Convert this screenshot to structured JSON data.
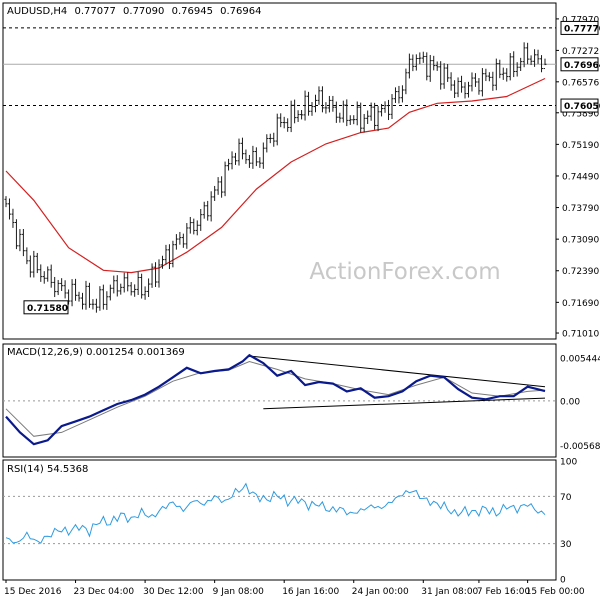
{
  "header": {
    "symbol": "AUDUSD,H4",
    "ohlc": [
      "0.77077",
      "0.77090",
      "0.76945",
      "0.76964"
    ]
  },
  "watermark": "ActionForex.com",
  "colors": {
    "price_bars": "#1a1a1a",
    "moving_average": "#d42020",
    "macd_line": "#0a1a8c",
    "macd_signal": "#7a7a7a",
    "rsi_line": "#2f9be0",
    "trendline": "#000000",
    "grid_dotted": "#999999",
    "border": "#000000",
    "box_fill": "#ffffff"
  },
  "chart_data": [
    {
      "type": "candlestick",
      "panel": "price",
      "title": "AUDUSD,H4 0.77077 0.77090 0.76945 0.76964",
      "ylim": [
        0.709,
        0.783
      ],
      "y_ticks": [
        "0.77970",
        "0.77272",
        "0.76576",
        "0.75890",
        "0.75190",
        "0.74490",
        "0.73790",
        "0.73090",
        "0.72390",
        "0.71690",
        "0.71010"
      ],
      "box_labels": {
        "high_line": "0.77770",
        "last": "0.76964",
        "support": "0.76050",
        "low": "0.71580"
      },
      "levels": {
        "high_line": 0.7777,
        "last": 0.76964,
        "support": 0.7605,
        "low": 0.7158
      },
      "last_ohlc": {
        "open": 0.77077,
        "high": 0.7709,
        "low": 0.76945,
        "close": 0.76964
      },
      "key_points": [
        {
          "bar": 0,
          "close": 0.7378
        },
        {
          "bar": 6,
          "close": 0.7262
        },
        {
          "bar": 16,
          "close": 0.7196
        },
        {
          "bar": 24,
          "close": 0.7175
        },
        {
          "bar": 26,
          "close": 0.7165
        },
        {
          "bar": 32,
          "close": 0.721
        },
        {
          "bar": 40,
          "close": 0.7198
        },
        {
          "bar": 44,
          "close": 0.725
        },
        {
          "bar": 50,
          "close": 0.731
        },
        {
          "bar": 56,
          "close": 0.7355
        },
        {
          "bar": 62,
          "close": 0.744
        },
        {
          "bar": 66,
          "close": 0.7505
        },
        {
          "bar": 72,
          "close": 0.748
        },
        {
          "bar": 78,
          "close": 0.756
        },
        {
          "bar": 84,
          "close": 0.759
        },
        {
          "bar": 90,
          "close": 0.762
        },
        {
          "bar": 96,
          "close": 0.7585
        },
        {
          "bar": 102,
          "close": 0.7575
        },
        {
          "bar": 108,
          "close": 0.759
        },
        {
          "bar": 113,
          "close": 0.763
        },
        {
          "bar": 117,
          "close": 0.7712
        },
        {
          "bar": 124,
          "close": 0.7685
        },
        {
          "bar": 130,
          "close": 0.764
        },
        {
          "bar": 138,
          "close": 0.7665
        },
        {
          "bar": 146,
          "close": 0.769
        },
        {
          "bar": 150,
          "close": 0.772
        },
        {
          "bar": 153,
          "close": 0.77
        },
        {
          "bar": 155,
          "close": 0.7696
        }
      ],
      "ma_points": [
        {
          "bar": 0,
          "value": 0.746
        },
        {
          "bar": 8,
          "value": 0.7395
        },
        {
          "bar": 18,
          "value": 0.729
        },
        {
          "bar": 28,
          "value": 0.724
        },
        {
          "bar": 36,
          "value": 0.7235
        },
        {
          "bar": 44,
          "value": 0.7245
        },
        {
          "bar": 52,
          "value": 0.728
        },
        {
          "bar": 62,
          "value": 0.7335
        },
        {
          "bar": 72,
          "value": 0.742
        },
        {
          "bar": 82,
          "value": 0.748
        },
        {
          "bar": 92,
          "value": 0.752
        },
        {
          "bar": 102,
          "value": 0.7545
        },
        {
          "bar": 110,
          "value": 0.7555
        },
        {
          "bar": 116,
          "value": 0.759
        },
        {
          "bar": 124,
          "value": 0.761
        },
        {
          "bar": 134,
          "value": 0.7615
        },
        {
          "bar": 144,
          "value": 0.7625
        },
        {
          "bar": 155,
          "value": 0.7665
        }
      ]
    },
    {
      "type": "line",
      "panel": "macd",
      "title": "MACD(12,26,9) 0.001254 0.001369",
      "ylim": [
        -0.007,
        0.0071
      ],
      "y_ticks": [
        "0.005444",
        "0.00",
        "-0.005685"
      ],
      "zero_line": 0.0,
      "series": [
        {
          "role": "macd",
          "points": [
            [
              0,
              -0.002
            ],
            [
              4,
              -0.004
            ],
            [
              8,
              -0.0055
            ],
            [
              12,
              -0.005
            ],
            [
              16,
              -0.0032
            ],
            [
              20,
              -0.0026
            ],
            [
              24,
              -0.002
            ],
            [
              28,
              -0.0012
            ],
            [
              32,
              -0.0004
            ],
            [
              36,
              0.0001
            ],
            [
              40,
              0.0008
            ],
            [
              44,
              0.0018
            ],
            [
              48,
              0.003
            ],
            [
              52,
              0.0042
            ],
            [
              56,
              0.0035
            ],
            [
              60,
              0.0038
            ],
            [
              64,
              0.004
            ],
            [
              68,
              0.005
            ],
            [
              70,
              0.0058
            ],
            [
              74,
              0.0048
            ],
            [
              78,
              0.0032
            ],
            [
              82,
              0.0038
            ],
            [
              86,
              0.002
            ],
            [
              90,
              0.0024
            ],
            [
              94,
              0.0022
            ],
            [
              98,
              0.0012
            ],
            [
              102,
              0.0016
            ],
            [
              106,
              0.0004
            ],
            [
              110,
              0.0006
            ],
            [
              114,
              0.0012
            ],
            [
              118,
              0.0025
            ],
            [
              122,
              0.0032
            ],
            [
              126,
              0.003
            ],
            [
              130,
              0.0015
            ],
            [
              134,
              0.0004
            ],
            [
              138,
              0.0002
            ],
            [
              142,
              0.0006
            ],
            [
              146,
              0.0006
            ],
            [
              150,
              0.0018
            ],
            [
              155,
              0.00125
            ]
          ]
        },
        {
          "role": "signal",
          "points": [
            [
              0,
              -0.001
            ],
            [
              8,
              -0.0045
            ],
            [
              16,
              -0.004
            ],
            [
              24,
              -0.0024
            ],
            [
              32,
              -0.0008
            ],
            [
              40,
              0.0006
            ],
            [
              48,
              0.0025
            ],
            [
              56,
              0.0036
            ],
            [
              64,
              0.0039
            ],
            [
              70,
              0.005
            ],
            [
              78,
              0.004
            ],
            [
              86,
              0.0028
            ],
            [
              94,
              0.0022
            ],
            [
              102,
              0.0014
            ],
            [
              110,
              0.0008
            ],
            [
              118,
              0.002
            ],
            [
              126,
              0.003
            ],
            [
              134,
              0.001
            ],
            [
              142,
              0.0006
            ],
            [
              150,
              0.0012
            ],
            [
              155,
              0.00137
            ]
          ]
        }
      ],
      "trendlines": [
        {
          "from": [
            70,
            0.0057
          ],
          "to": [
            155,
            0.0018
          ]
        },
        {
          "from": [
            74,
            -0.001
          ],
          "to": [
            155,
            0.00035
          ]
        }
      ]
    },
    {
      "type": "line",
      "panel": "rsi",
      "title": "RSI(14) 54.5368",
      "ylim": [
        0,
        100
      ],
      "y_ticks": [
        "100",
        "70",
        "30",
        "0"
      ],
      "reference_lines": [
        70,
        30
      ],
      "points": [
        [
          0,
          35
        ],
        [
          3,
          30
        ],
        [
          6,
          38
        ],
        [
          9,
          31
        ],
        [
          12,
          36
        ],
        [
          15,
          42
        ],
        [
          18,
          40
        ],
        [
          21,
          45
        ],
        [
          24,
          40
        ],
        [
          27,
          50
        ],
        [
          30,
          47
        ],
        [
          33,
          55
        ],
        [
          36,
          50
        ],
        [
          39,
          57
        ],
        [
          42,
          52
        ],
        [
          45,
          60
        ],
        [
          48,
          65
        ],
        [
          51,
          58
        ],
        [
          54,
          67
        ],
        [
          57,
          63
        ],
        [
          60,
          70
        ],
        [
          63,
          65
        ],
        [
          66,
          74
        ],
        [
          69,
          78
        ],
        [
          72,
          70
        ],
        [
          75,
          67
        ],
        [
          78,
          72
        ],
        [
          81,
          65
        ],
        [
          84,
          68
        ],
        [
          87,
          62
        ],
        [
          90,
          64
        ],
        [
          93,
          58
        ],
        [
          96,
          60
        ],
        [
          99,
          55
        ],
        [
          102,
          58
        ],
        [
          105,
          62
        ],
        [
          108,
          60
        ],
        [
          111,
          66
        ],
        [
          114,
          72
        ],
        [
          117,
          75
        ],
        [
          120,
          68
        ],
        [
          123,
          64
        ],
        [
          126,
          62
        ],
        [
          129,
          55
        ],
        [
          132,
          58
        ],
        [
          135,
          56
        ],
        [
          138,
          60
        ],
        [
          141,
          55
        ],
        [
          144,
          62
        ],
        [
          147,
          59
        ],
        [
          150,
          64
        ],
        [
          153,
          57
        ],
        [
          155,
          54.5
        ]
      ]
    }
  ],
  "x_axis": {
    "labels": [
      "15 Dec 2016",
      "23 Dec 04:00",
      "30 Dec 12:00",
      "9 Jan 08:00",
      "16 Jan 16:00",
      "24 Jan 00:00",
      "31 Jan 08:00",
      "7 Feb 16:00",
      "15 Feb 00:00"
    ],
    "label_bars": [
      0,
      20,
      40,
      60,
      80,
      100,
      120,
      136,
      150
    ]
  }
}
